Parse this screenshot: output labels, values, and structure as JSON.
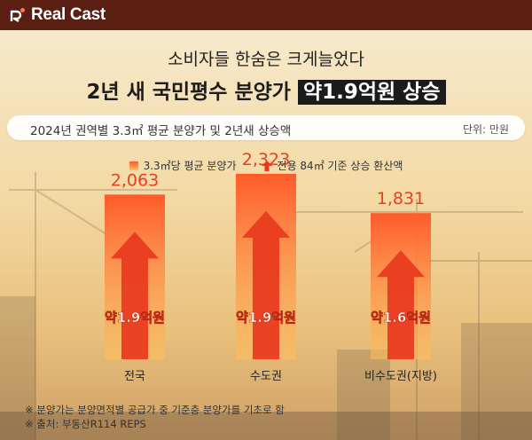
{
  "brand": {
    "logo_text": "Real Cast"
  },
  "headline": {
    "subtitle": "소비자들 한숨은 크게늘었다",
    "title_plain": "2년 새 국민평수 분양가 ",
    "title_highlight": "약1.9억원 상승"
  },
  "info_bar": {
    "title": "2024년 권역별 3.3㎡ 평균 분양가 및 2년새 상승액",
    "unit": "단위: 만원"
  },
  "legend": {
    "bar_label": "3.3㎡당 평균 분양가",
    "arrow_label": "전용 84㎡ 기준 상승 환산액"
  },
  "chart_data": {
    "type": "bar",
    "categories": [
      "전국",
      "수도권",
      "비수도권(지방)"
    ],
    "values": [
      2063,
      2323,
      1831
    ],
    "value_labels": [
      "2,063",
      "2,323",
      "1,831"
    ],
    "increase_labels": [
      "약1.9억원",
      "약1.9억원",
      "약1.6억원"
    ],
    "series": [
      {
        "name": "3.3㎡당 평균 분양가",
        "values": [
          2063,
          2323,
          1831
        ]
      }
    ],
    "bar_color_top": "#ff5a2a",
    "bar_color_bottom": "#ffbf5c",
    "arrow_color": "#e8381d"
  },
  "notes": [
    "※ 분양가는 분양면적별 공급가 중 기준층 분양가를 기초로 함",
    "※ 출처: 부동산R114 REPS"
  ]
}
